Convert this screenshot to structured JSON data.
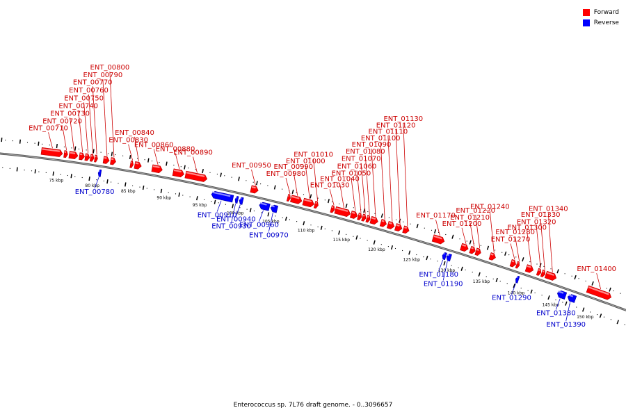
{
  "legend": {
    "forward": {
      "label": "Forward",
      "color": "#ff0000"
    },
    "reverse": {
      "label": "Reverse",
      "color": "#0000ff"
    }
  },
  "caption": "Enterococcus sp. 7L76 draft genome. - 0..3096657",
  "chart_data": {
    "type": "linear-genome-map",
    "sequence_range": [
      0,
      3096657
    ],
    "visible_range_kbp": [
      72,
      152
    ],
    "ticks": [
      "75 kbp",
      "80 kbp",
      "85 kbp",
      "90 kbp",
      "95 kbp",
      "100 kbp",
      "105 kbp",
      "110 kbp",
      "115 kbp",
      "120 kbp",
      "125 kbp",
      "130 kbp",
      "135 kbp",
      "140 kbp",
      "145 kbp",
      "150 kbp"
    ],
    "genes": [
      {
        "id": "ENT_00710",
        "strand": "forward",
        "start": 72.5,
        "end": 75.4
      },
      {
        "id": "ENT_00720",
        "strand": "forward",
        "start": 75.6,
        "end": 76.1
      },
      {
        "id": "ENT_00730",
        "strand": "forward",
        "start": 76.3,
        "end": 77.5
      },
      {
        "id": "ENT_00740",
        "strand": "forward",
        "start": 77.7,
        "end": 78.4
      },
      {
        "id": "ENT_00750",
        "strand": "forward",
        "start": 78.5,
        "end": 79.1
      },
      {
        "id": "ENT_00760",
        "strand": "forward",
        "start": 79.2,
        "end": 79.7
      },
      {
        "id": "ENT_00770",
        "strand": "forward",
        "start": 79.8,
        "end": 80.2
      },
      {
        "id": "ENT_00780",
        "strand": "reverse",
        "start": 80.6,
        "end": 80.9
      },
      {
        "id": "ENT_00790",
        "strand": "forward",
        "start": 81.0,
        "end": 81.8
      },
      {
        "id": "ENT_00800",
        "strand": "forward",
        "start": 82.0,
        "end": 82.7
      },
      {
        "id": "ENT_00830",
        "strand": "forward",
        "start": 84.7,
        "end": 85.1
      },
      {
        "id": "ENT_00840",
        "strand": "forward",
        "start": 85.3,
        "end": 86.2
      },
      {
        "id": "ENT_00860",
        "strand": "forward",
        "start": 87.7,
        "end": 89.1
      },
      {
        "id": "ENT_00880",
        "strand": "forward",
        "start": 90.6,
        "end": 92.1
      },
      {
        "id": "ENT_00890",
        "strand": "forward",
        "start": 92.3,
        "end": 95.3
      },
      {
        "id": "ENT_00910",
        "strand": "reverse",
        "start": 96.3,
        "end": 99.3
      },
      {
        "id": "ENT_00930",
        "strand": "reverse",
        "start": 99.6,
        "end": 100.0
      },
      {
        "id": "ENT_00940",
        "strand": "reverse",
        "start": 100.2,
        "end": 100.7
      },
      {
        "id": "ENT_00950",
        "strand": "forward",
        "start": 101.4,
        "end": 102.4
      },
      {
        "id": "ENT_00960",
        "strand": "reverse",
        "start": 103.0,
        "end": 104.4
      },
      {
        "id": "ENT_00970",
        "strand": "reverse",
        "start": 104.6,
        "end": 105.5
      },
      {
        "id": "ENT_00980",
        "strand": "forward",
        "start": 106.5,
        "end": 106.9
      },
      {
        "id": "ENT_00990",
        "strand": "forward",
        "start": 107.0,
        "end": 108.5
      },
      {
        "id": "ENT_01000",
        "strand": "forward",
        "start": 108.7,
        "end": 110.2
      },
      {
        "id": "ENT_01010",
        "strand": "forward",
        "start": 110.3,
        "end": 110.8
      },
      {
        "id": "ENT_01030",
        "strand": "forward",
        "start": 112.6,
        "end": 113.1
      },
      {
        "id": "ENT_01040",
        "strand": "forward",
        "start": 113.2,
        "end": 115.3
      },
      {
        "id": "ENT_01050",
        "strand": "forward",
        "start": 115.4,
        "end": 116.3
      },
      {
        "id": "ENT_01060",
        "strand": "forward",
        "start": 116.4,
        "end": 116.9
      },
      {
        "id": "ENT_01070",
        "strand": "forward",
        "start": 117.0,
        "end": 117.5
      },
      {
        "id": "ENT_01080",
        "strand": "forward",
        "start": 117.6,
        "end": 118.1
      },
      {
        "id": "ENT_01090",
        "strand": "forward",
        "start": 118.2,
        "end": 119.2
      },
      {
        "id": "ENT_01100",
        "strand": "forward",
        "start": 119.6,
        "end": 120.4
      },
      {
        "id": "ENT_01110",
        "strand": "forward",
        "start": 120.6,
        "end": 121.5
      },
      {
        "id": "ENT_01120",
        "strand": "forward",
        "start": 121.7,
        "end": 122.6
      },
      {
        "id": "ENT_01130",
        "strand": "forward",
        "start": 122.8,
        "end": 123.6
      },
      {
        "id": "ENT_01170",
        "strand": "forward",
        "start": 127.0,
        "end": 128.6
      },
      {
        "id": "ENT_01180",
        "strand": "reverse",
        "start": 128.9,
        "end": 129.4
      },
      {
        "id": "ENT_01190",
        "strand": "reverse",
        "start": 129.5,
        "end": 130.1
      },
      {
        "id": "ENT_01200",
        "strand": "forward",
        "start": 131.0,
        "end": 132.0
      },
      {
        "id": "ENT_01210",
        "strand": "forward",
        "start": 132.3,
        "end": 133.0
      },
      {
        "id": "ENT_01220",
        "strand": "forward",
        "start": 133.1,
        "end": 133.8
      },
      {
        "id": "ENT_01240",
        "strand": "forward",
        "start": 135.1,
        "end": 135.9
      },
      {
        "id": "ENT_01270",
        "strand": "forward",
        "start": 138.1,
        "end": 138.8
      },
      {
        "id": "ENT_01280",
        "strand": "forward",
        "start": 138.9,
        "end": 139.3
      },
      {
        "id": "ENT_01290",
        "strand": "reverse",
        "start": 139.4,
        "end": 139.8
      },
      {
        "id": "ENT_01300",
        "strand": "forward",
        "start": 140.3,
        "end": 141.3
      },
      {
        "id": "ENT_01320",
        "strand": "forward",
        "start": 141.9,
        "end": 142.4
      },
      {
        "id": "ENT_01330",
        "strand": "forward",
        "start": 142.5,
        "end": 143.0
      },
      {
        "id": "ENT_01340",
        "strand": "forward",
        "start": 143.1,
        "end": 144.6
      },
      {
        "id": "ENT_01380",
        "strand": "reverse",
        "start": 145.4,
        "end": 146.6
      },
      {
        "id": "ENT_01390",
        "strand": "reverse",
        "start": 146.9,
        "end": 148.0
      },
      {
        "id": "ENT_01400",
        "strand": "forward",
        "start": 149.1,
        "end": 152.5
      }
    ]
  }
}
